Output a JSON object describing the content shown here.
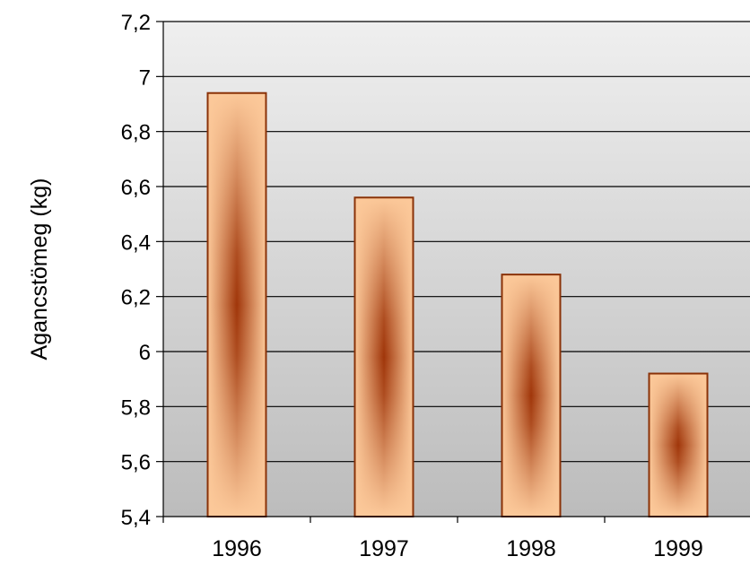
{
  "chart_data": {
    "type": "bar",
    "categories": [
      "1996",
      "1997",
      "1998",
      "1999"
    ],
    "values": [
      6.94,
      6.56,
      6.28,
      5.92
    ],
    "xlabel": "",
    "ylabel": "Agancstömeg  (kg)",
    "ylim": [
      5.4,
      7.2
    ],
    "yticks": [
      5.4,
      5.6,
      5.8,
      6.0,
      6.2,
      6.4,
      6.6,
      6.8,
      7.0,
      7.2
    ],
    "ytick_labels": [
      "5,4",
      "5,6",
      "5,8",
      "6",
      "6,2",
      "6,4",
      "6,6",
      "6,8",
      "7",
      "7,2"
    ],
    "grid": true,
    "legend": "none",
    "colors": {
      "bar_light": "#fcc99a",
      "bar_dark": "#a0360a",
      "bar_border": "#8a3208",
      "plot_top": "#efefef",
      "plot_bottom": "#bcbcbc",
      "grid": "#000000"
    }
  }
}
